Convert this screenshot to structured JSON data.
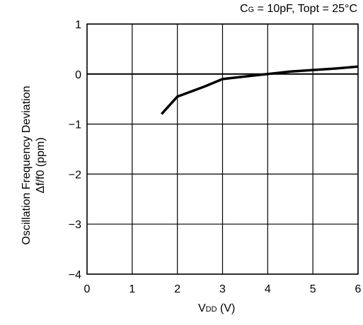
{
  "chart_data": {
    "type": "line",
    "conditions": {
      "prefix": "C",
      "prefix_sub": "G",
      "rest": " = 10pF, Topt = 25°C"
    },
    "xlabel": {
      "main": "V",
      "sub": "DD",
      "unit": " (V)"
    },
    "ylabel": {
      "line1": "Oscillation Frequency Deviation",
      "line2": "Δf/f0 (ppm)"
    },
    "xlim": [
      0,
      6
    ],
    "ylim": [
      -4,
      1
    ],
    "x_ticks": [
      0,
      1,
      2,
      3,
      4,
      5,
      6
    ],
    "x_tick_labels": [
      "0",
      "1",
      "2",
      "3",
      "4",
      "5",
      "6"
    ],
    "y_ticks": [
      1,
      0,
      -1,
      -2,
      -3,
      -4
    ],
    "y_tick_labels": [
      "1",
      "0",
      "−1",
      "−2",
      "−3",
      "−4"
    ],
    "grid": true,
    "zero_reference_line": true,
    "series": [
      {
        "x": [
          1.65,
          2.0,
          2.3,
          2.6,
          3.0,
          3.5,
          4.0,
          4.5,
          5.0,
          5.5,
          6.0
        ],
        "y": [
          -0.8,
          -0.45,
          -0.35,
          -0.25,
          -0.1,
          -0.05,
          0.0,
          0.05,
          0.08,
          0.11,
          0.15
        ],
        "color": "#000000"
      }
    ]
  }
}
